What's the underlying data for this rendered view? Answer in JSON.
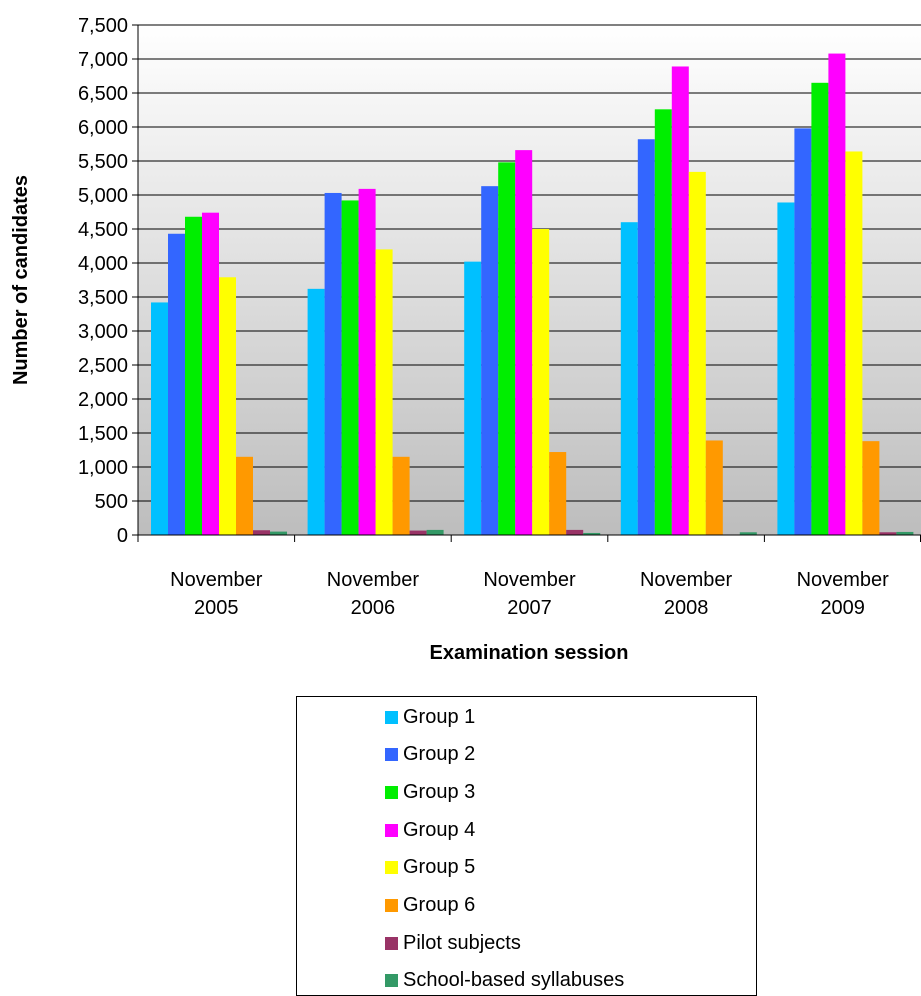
{
  "chart_data": {
    "type": "bar",
    "xlabel": "Examination session",
    "ylabel": "Number of candidates",
    "ylim": [
      0,
      7500
    ],
    "ytick_step": 500,
    "yticks": [
      "0",
      "500",
      "1,000",
      "1,500",
      "2,000",
      "2,500",
      "3,000",
      "3,500",
      "4,000",
      "4,500",
      "5,000",
      "5,500",
      "6,000",
      "6,500",
      "7,000",
      "7,500"
    ],
    "grid": true,
    "legend_position": "bottom",
    "categories": [
      {
        "line1": "November",
        "line2": "2005"
      },
      {
        "line1": "November",
        "line2": "2006"
      },
      {
        "line1": "November",
        "line2": "2007"
      },
      {
        "line1": "November",
        "line2": "2008"
      },
      {
        "line1": "November",
        "line2": "2009"
      }
    ],
    "series": [
      {
        "name": "Group 1",
        "color": "#00c0ff",
        "values": [
          3420,
          3620,
          4020,
          4600,
          4890
        ]
      },
      {
        "name": "Group 2",
        "color": "#3366ff",
        "values": [
          4430,
          5030,
          5130,
          5820,
          5980
        ]
      },
      {
        "name": "Group 3",
        "color": "#00ee00",
        "values": [
          4680,
          4920,
          5480,
          6260,
          6650
        ]
      },
      {
        "name": "Group 4",
        "color": "#ff00ff",
        "values": [
          4740,
          5090,
          5660,
          6890,
          7080
        ]
      },
      {
        "name": "Group 5",
        "color": "#ffff00",
        "values": [
          3790,
          4200,
          4500,
          5340,
          5640
        ]
      },
      {
        "name": "Group 6",
        "color": "#ff9900",
        "values": [
          1150,
          1150,
          1220,
          1390,
          1380
        ]
      },
      {
        "name": "Pilot subjects",
        "color": "#993366",
        "values": [
          70,
          65,
          75,
          0,
          40
        ]
      },
      {
        "name": "School-based syllabuses",
        "color": "#339966",
        "values": [
          50,
          75,
          30,
          40,
          45
        ]
      }
    ]
  }
}
